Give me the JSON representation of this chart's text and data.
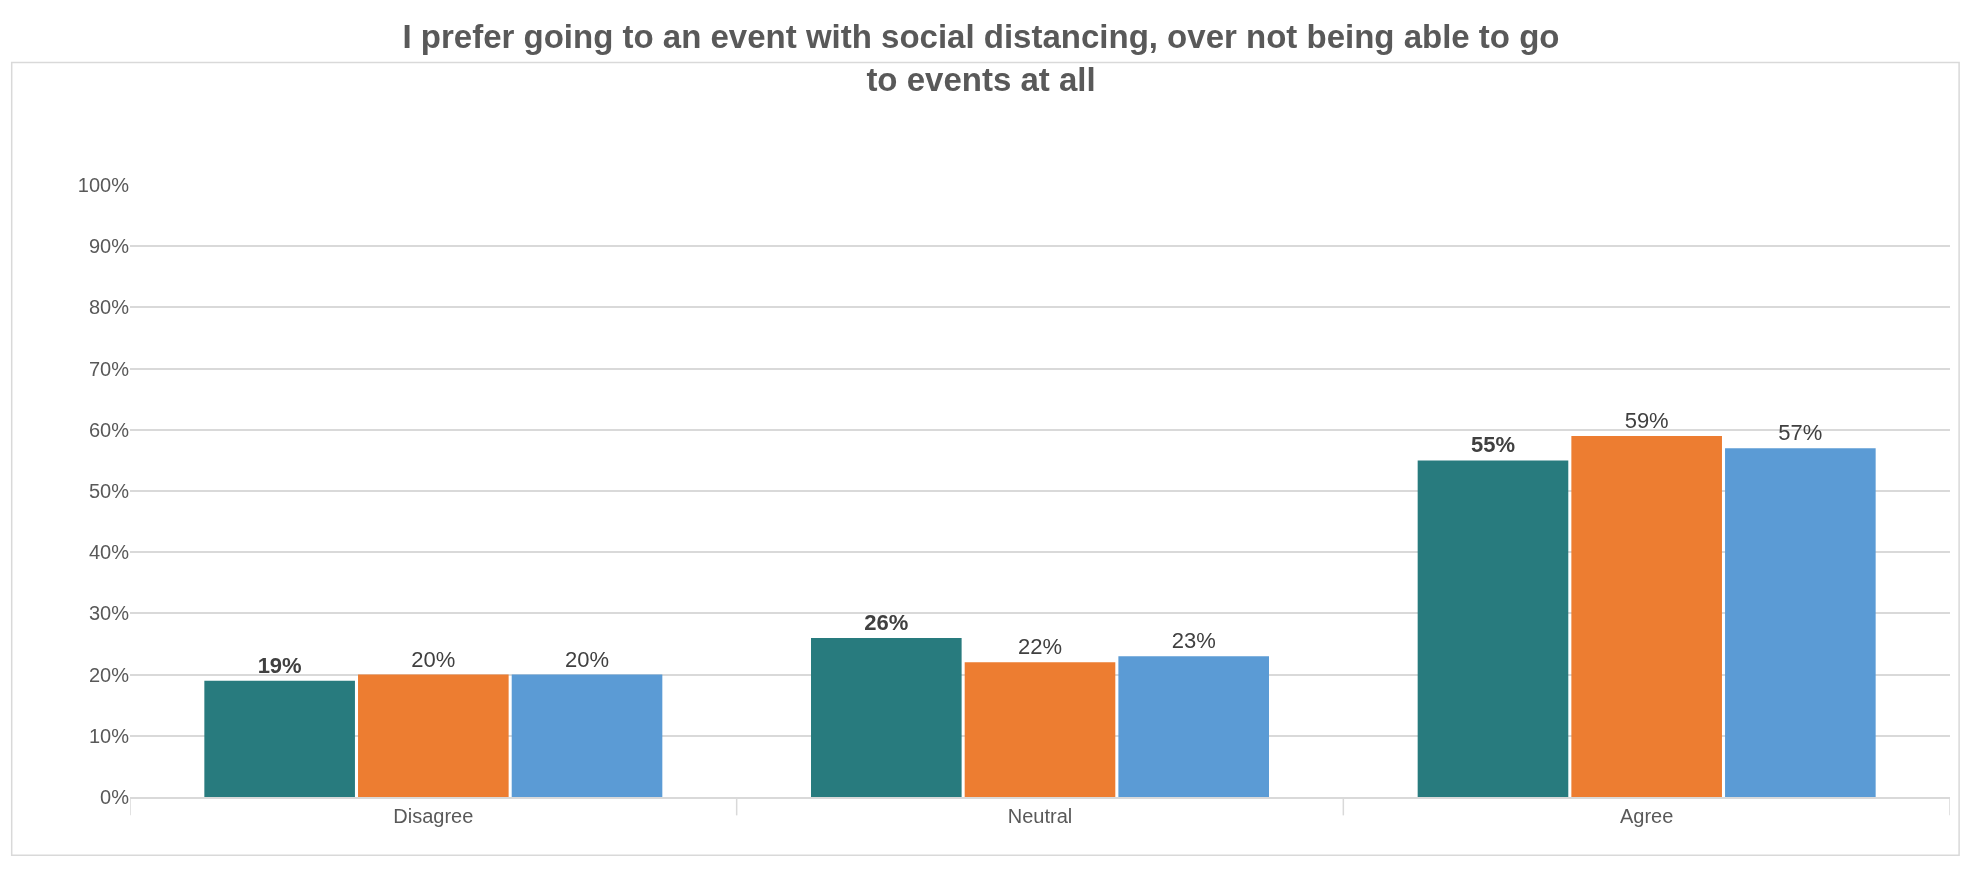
{
  "chart_data": {
    "type": "bar",
    "title": "I prefer going to an event with social distancing, over not being able to go\nto events at all",
    "categories": [
      "Disagree",
      "Neutral",
      "Agree"
    ],
    "series": [
      {
        "color": "#287b7e",
        "values": [
          19,
          26,
          55
        ],
        "value_labels": [
          "19%",
          "26%",
          "55%"
        ]
      },
      {
        "color": "#ed7d31",
        "values": [
          20,
          22,
          59
        ],
        "value_labels": [
          "20%",
          "22%",
          "59%"
        ]
      },
      {
        "color": "#5b9bd5",
        "values": [
          20,
          23,
          57
        ],
        "value_labels": [
          "20%",
          "23%",
          "57%"
        ]
      }
    ],
    "ylim": [
      0,
      100
    ],
    "yticks": [
      {
        "value": 0,
        "label": "0%"
      },
      {
        "value": 10,
        "label": "10%"
      },
      {
        "value": 20,
        "label": "20%"
      },
      {
        "value": 30,
        "label": "30%"
      },
      {
        "value": 40,
        "label": "40%"
      },
      {
        "value": 50,
        "label": "50%"
      },
      {
        "value": 60,
        "label": "60%"
      },
      {
        "value": 70,
        "label": "70%"
      },
      {
        "value": 80,
        "label": "80%"
      },
      {
        "value": 90,
        "label": "90%"
      },
      {
        "value": 100,
        "label": "100%"
      }
    ],
    "grid": "y",
    "legend": false
  }
}
